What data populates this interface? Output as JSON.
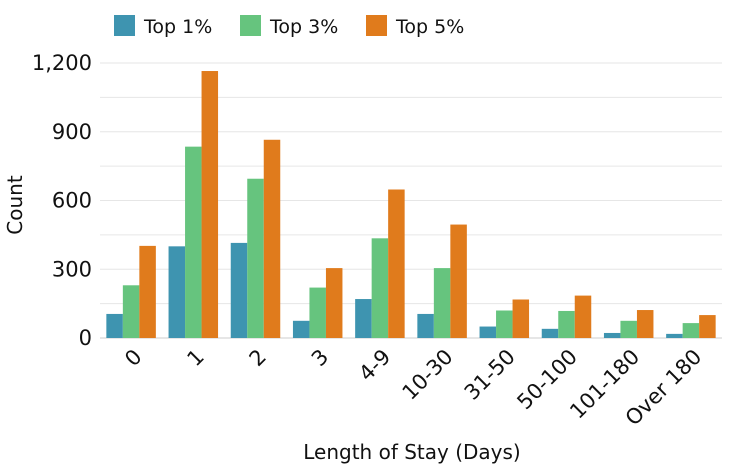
{
  "chart_data": {
    "type": "bar",
    "title": "",
    "xlabel": "Length of Stay (Days)",
    "ylabel": "Count",
    "ylim": [
      0,
      1200
    ],
    "yticks": [
      0,
      300,
      600,
      900,
      1200
    ],
    "ytick_labels": [
      "0",
      "300",
      "600",
      "900",
      "1,200"
    ],
    "grid": true,
    "legend_position": "top-left",
    "categories": [
      "0",
      "1",
      "2",
      "3",
      "4-9",
      "10-30",
      "31-50",
      "50-100",
      "101-180",
      "Over 180"
    ],
    "series": [
      {
        "name": "Top 1%",
        "color": "#3e94b0",
        "values": [
          105,
          400,
          415,
          75,
          170,
          105,
          50,
          40,
          22,
          18
        ]
      },
      {
        "name": "Top 3%",
        "color": "#66c47e",
        "values": [
          230,
          835,
          695,
          220,
          435,
          305,
          120,
          118,
          75,
          65
        ]
      },
      {
        "name": "Top 5%",
        "color": "#e07b1c",
        "values": [
          402,
          1165,
          865,
          305,
          648,
          495,
          168,
          185,
          122,
          100
        ]
      }
    ]
  }
}
